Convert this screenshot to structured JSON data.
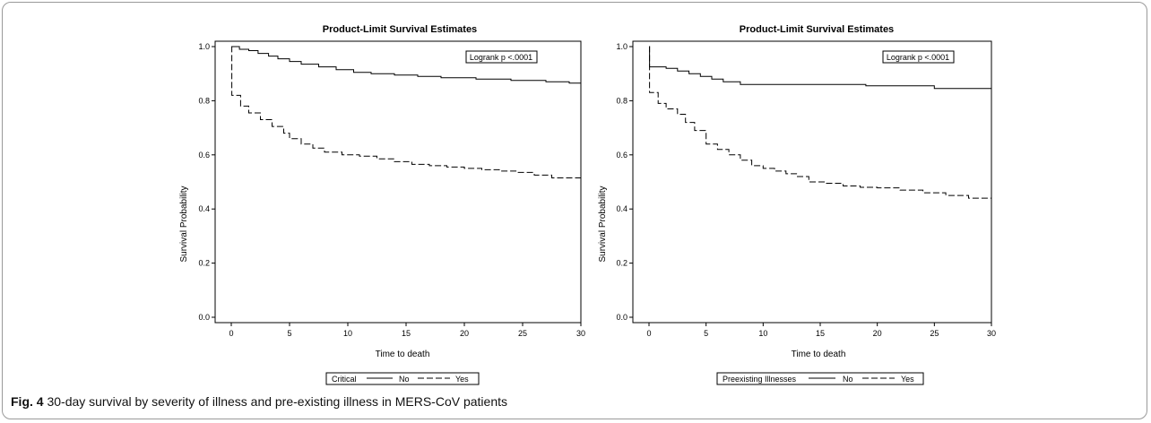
{
  "caption": {
    "label": "Fig. 4",
    "text": "30-day survival by severity of illness and pre-existing illness in MERS-CoV patients"
  },
  "chart_data": [
    {
      "type": "line",
      "title": "Product-Limit Survival Estimates",
      "xlabel": "Time to death",
      "ylabel": "Survival Probability",
      "xlim": [
        0,
        30
      ],
      "ylim": [
        0.0,
        1.0
      ],
      "xticks": [
        0,
        5,
        10,
        15,
        20,
        25,
        30
      ],
      "yticks": [
        "0.0",
        "0.2",
        "0.4",
        "0.6",
        "0.8",
        "1.0"
      ],
      "annotation": "Logrank p <.0001",
      "legend": {
        "title": "Critical",
        "entries": [
          "No",
          "Yes"
        ],
        "placement": "bottom"
      },
      "series": [
        {
          "name": "No",
          "style": "solid",
          "x": [
            0,
            0.7,
            1.5,
            2.3,
            3.2,
            4.0,
            5.0,
            6.0,
            7.5,
            9.0,
            10.5,
            12.0,
            14.0,
            16.0,
            18.0,
            21.0,
            24.0,
            27.0,
            29.0,
            30.0
          ],
          "y": [
            1.0,
            0.99,
            0.985,
            0.975,
            0.965,
            0.955,
            0.945,
            0.935,
            0.925,
            0.915,
            0.905,
            0.9,
            0.895,
            0.89,
            0.885,
            0.88,
            0.875,
            0.87,
            0.865,
            0.865
          ]
        },
        {
          "name": "Yes",
          "style": "dashed",
          "x": [
            0,
            0.05,
            0.8,
            1.5,
            2.5,
            3.5,
            4.5,
            5.0,
            6.0,
            7.0,
            8.0,
            9.5,
            11.0,
            12.5,
            14.0,
            15.5,
            17.0,
            18.5,
            20.0,
            21.5,
            23.0,
            24.5,
            26.0,
            27.5,
            30.0
          ],
          "y": [
            1.0,
            0.82,
            0.78,
            0.755,
            0.73,
            0.705,
            0.68,
            0.66,
            0.64,
            0.625,
            0.61,
            0.6,
            0.595,
            0.585,
            0.575,
            0.565,
            0.56,
            0.555,
            0.55,
            0.545,
            0.54,
            0.535,
            0.525,
            0.515,
            0.51
          ]
        }
      ]
    },
    {
      "type": "line",
      "title": "Product-Limit Survival Estimates",
      "xlabel": "Time to death",
      "ylabel": "Survival Probability",
      "xlim": [
        0,
        30
      ],
      "ylim": [
        0.0,
        1.0
      ],
      "xticks": [
        0,
        5,
        10,
        15,
        20,
        25,
        30
      ],
      "yticks": [
        "0.0",
        "0.2",
        "0.4",
        "0.6",
        "0.8",
        "1.0"
      ],
      "annotation": "Logrank p <.0001",
      "legend": {
        "title": "Preexisting Illnesses",
        "entries": [
          "No",
          "Yes"
        ],
        "placement": "bottom"
      },
      "series": [
        {
          "name": "No",
          "style": "solid",
          "x": [
            0,
            0.05,
            1.5,
            2.5,
            3.5,
            4.5,
            5.5,
            6.5,
            8.0,
            19.0,
            25.0,
            30.0
          ],
          "y": [
            1.0,
            0.925,
            0.92,
            0.91,
            0.9,
            0.89,
            0.88,
            0.87,
            0.86,
            0.855,
            0.845,
            0.845
          ]
        },
        {
          "name": "Yes",
          "style": "dashed",
          "x": [
            0,
            0.05,
            0.8,
            1.5,
            2.5,
            3.2,
            4.0,
            5.0,
            6.0,
            7.0,
            8.0,
            9.0,
            10.0,
            11.0,
            12.0,
            13.0,
            14.0,
            15.5,
            17.0,
            18.5,
            20.0,
            22.0,
            24.0,
            26.0,
            28.0,
            30.0
          ],
          "y": [
            1.0,
            0.83,
            0.79,
            0.77,
            0.75,
            0.72,
            0.69,
            0.64,
            0.62,
            0.6,
            0.58,
            0.56,
            0.55,
            0.54,
            0.53,
            0.52,
            0.5,
            0.495,
            0.485,
            0.48,
            0.478,
            0.47,
            0.46,
            0.45,
            0.44,
            0.43
          ]
        }
      ]
    }
  ]
}
